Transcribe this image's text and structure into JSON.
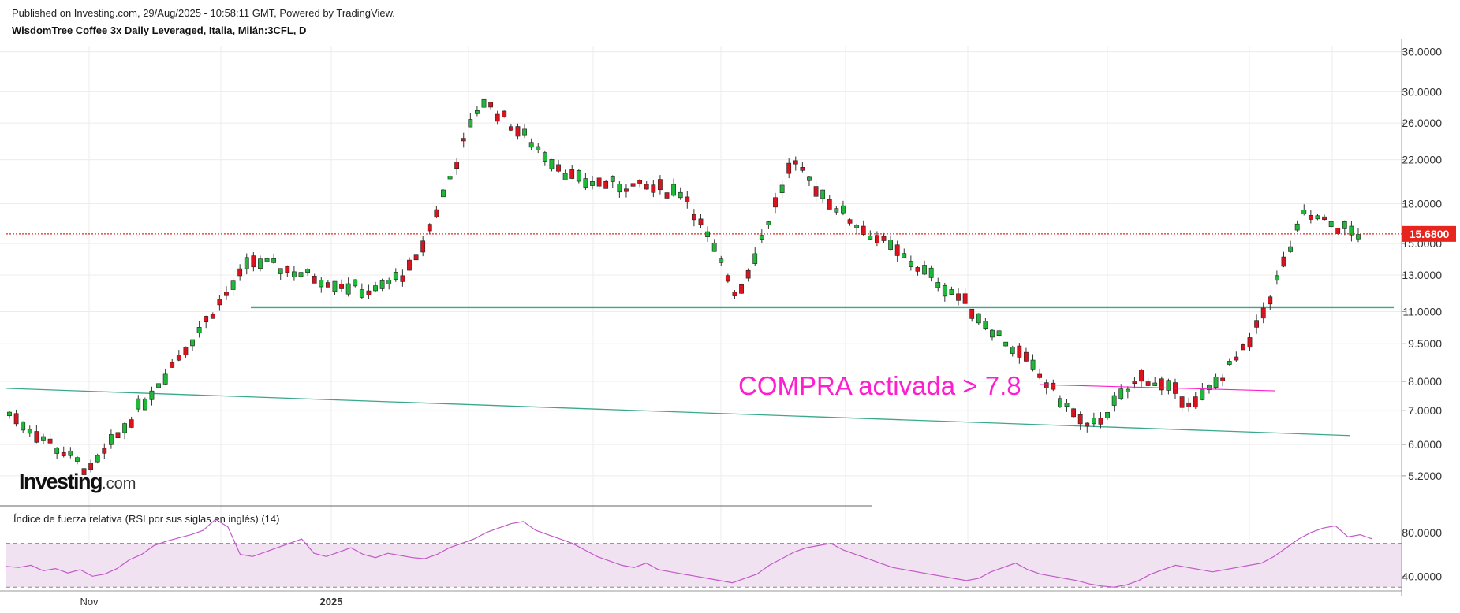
{
  "header": {
    "published": "Published on Investing.com, 29/Aug/2025 - 10:58:11 GMT, Powered by TradingView.",
    "instrument": "WisdomTree Coffee 3x Daily Leveraged, Italia, Milán:3CFL, D"
  },
  "logo": {
    "brand": "Investing",
    "suffix": ".com"
  },
  "rsi_panel": {
    "title": "Índice de fuerza relativa (RSI por sus siglas en inglés) (14)"
  },
  "colors": {
    "up": "#1fb838",
    "down": "#d9141f",
    "trendline": "#3aa88a",
    "annotation": "#ff1ecf",
    "price_line": "#e8241f",
    "rsi_line": "#c25ac8",
    "rsi_band": "#f1e2f1",
    "grid": "#ececec"
  },
  "chart_data": [
    {
      "type": "candlestick",
      "title": "WisdomTree Coffee 3x Daily Leveraged, Italia, Milán:3CFL, D",
      "yscale": "log",
      "ylim": [
        4.6,
        37
      ],
      "y_ticks": [
        "36.0000",
        "30.0000",
        "26.0000",
        "22.0000",
        "18.0000",
        "15.0000",
        "13.0000",
        "11.0000",
        "9.5000",
        "8.0000",
        "7.0000",
        "6.0000",
        "5.2000"
      ],
      "x_ticks": [
        "Nov",
        "2025"
      ],
      "last_price_label": "15.6800",
      "last_price": 15.68,
      "annotation": {
        "text": "COMPRA activada > 7.8",
        "level": 7.8
      },
      "trendlines": [
        {
          "name": "resistance",
          "from": 11.2,
          "to": 11.2
        },
        {
          "name": "support",
          "from": 7.75,
          "to": 6.25
        }
      ],
      "key_points": {
        "start": 6.9,
        "low_nov": 5.3,
        "high_jan": 13.9,
        "jan_low": 9.0,
        "peak_feb": 29.0,
        "mar_low": 11.2,
        "apr_high": 21.6,
        "jul_low": 6.4,
        "aug_high": 17.1,
        "last": 15.68
      }
    },
    {
      "type": "line",
      "title": "Índice de fuerza relativa (RSI por sus siglas en inglés) (14)",
      "period": 14,
      "ylim": [
        28,
        100
      ],
      "y_ticks": [
        "80.0000",
        "40.0000"
      ],
      "band": [
        70,
        30
      ],
      "values": [
        49,
        48,
        50,
        45,
        47,
        43,
        46,
        40,
        42,
        47,
        55,
        60,
        68,
        72,
        75,
        78,
        82,
        92,
        85,
        60,
        58,
        62,
        66,
        70,
        74,
        61,
        58,
        62,
        66,
        60,
        57,
        61,
        59,
        57,
        56,
        60,
        66,
        70,
        74,
        80,
        84,
        88,
        90,
        82,
        78,
        74,
        70,
        64,
        58,
        54,
        50,
        48,
        52,
        46,
        44,
        42,
        40,
        38,
        36,
        34,
        38,
        42,
        50,
        56,
        62,
        66,
        68,
        70,
        64,
        60,
        56,
        52,
        48,
        46,
        44,
        42,
        40,
        38,
        36,
        38,
        44,
        48,
        52,
        46,
        42,
        40,
        38,
        36,
        33,
        31,
        30,
        32,
        36,
        42,
        46,
        50,
        48,
        46,
        44,
        46,
        48,
        50,
        52,
        58,
        66,
        74,
        80,
        84,
        86,
        76,
        78,
        74
      ]
    }
  ]
}
